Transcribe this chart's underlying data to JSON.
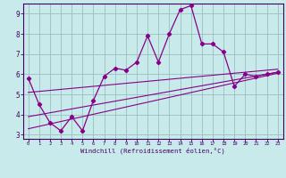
{
  "xlabel": "Windchill (Refroidissement éolien,°C)",
  "bg_color": "#c8eaea",
  "grid_color": "#9bbfbf",
  "line_color": "#880088",
  "spine_color": "#440066",
  "xlim": [
    -0.5,
    23.5
  ],
  "ylim": [
    2.8,
    9.5
  ],
  "xticks": [
    0,
    1,
    2,
    3,
    4,
    5,
    6,
    7,
    8,
    9,
    10,
    11,
    12,
    13,
    14,
    15,
    16,
    17,
    18,
    19,
    20,
    21,
    22,
    23
  ],
  "yticks": [
    3,
    4,
    5,
    6,
    7,
    8,
    9
  ],
  "line1_x": [
    0,
    1,
    2,
    3,
    4,
    5,
    6,
    7,
    8,
    9,
    10,
    11,
    12,
    13,
    14,
    15,
    16,
    17,
    18,
    19,
    20,
    21,
    22,
    23
  ],
  "line1_y": [
    5.8,
    4.5,
    3.6,
    3.2,
    3.9,
    3.2,
    4.7,
    5.9,
    6.3,
    6.2,
    6.6,
    7.9,
    6.6,
    8.0,
    9.2,
    9.4,
    7.5,
    7.5,
    7.1,
    5.4,
    6.0,
    5.9,
    6.0,
    6.1
  ],
  "line2_x": [
    0,
    23
  ],
  "line2_y": [
    3.3,
    6.05
  ],
  "line3_x": [
    0,
    23
  ],
  "line3_y": [
    3.9,
    6.1
  ],
  "line4_x": [
    0,
    23
  ],
  "line4_y": [
    5.1,
    6.25
  ]
}
